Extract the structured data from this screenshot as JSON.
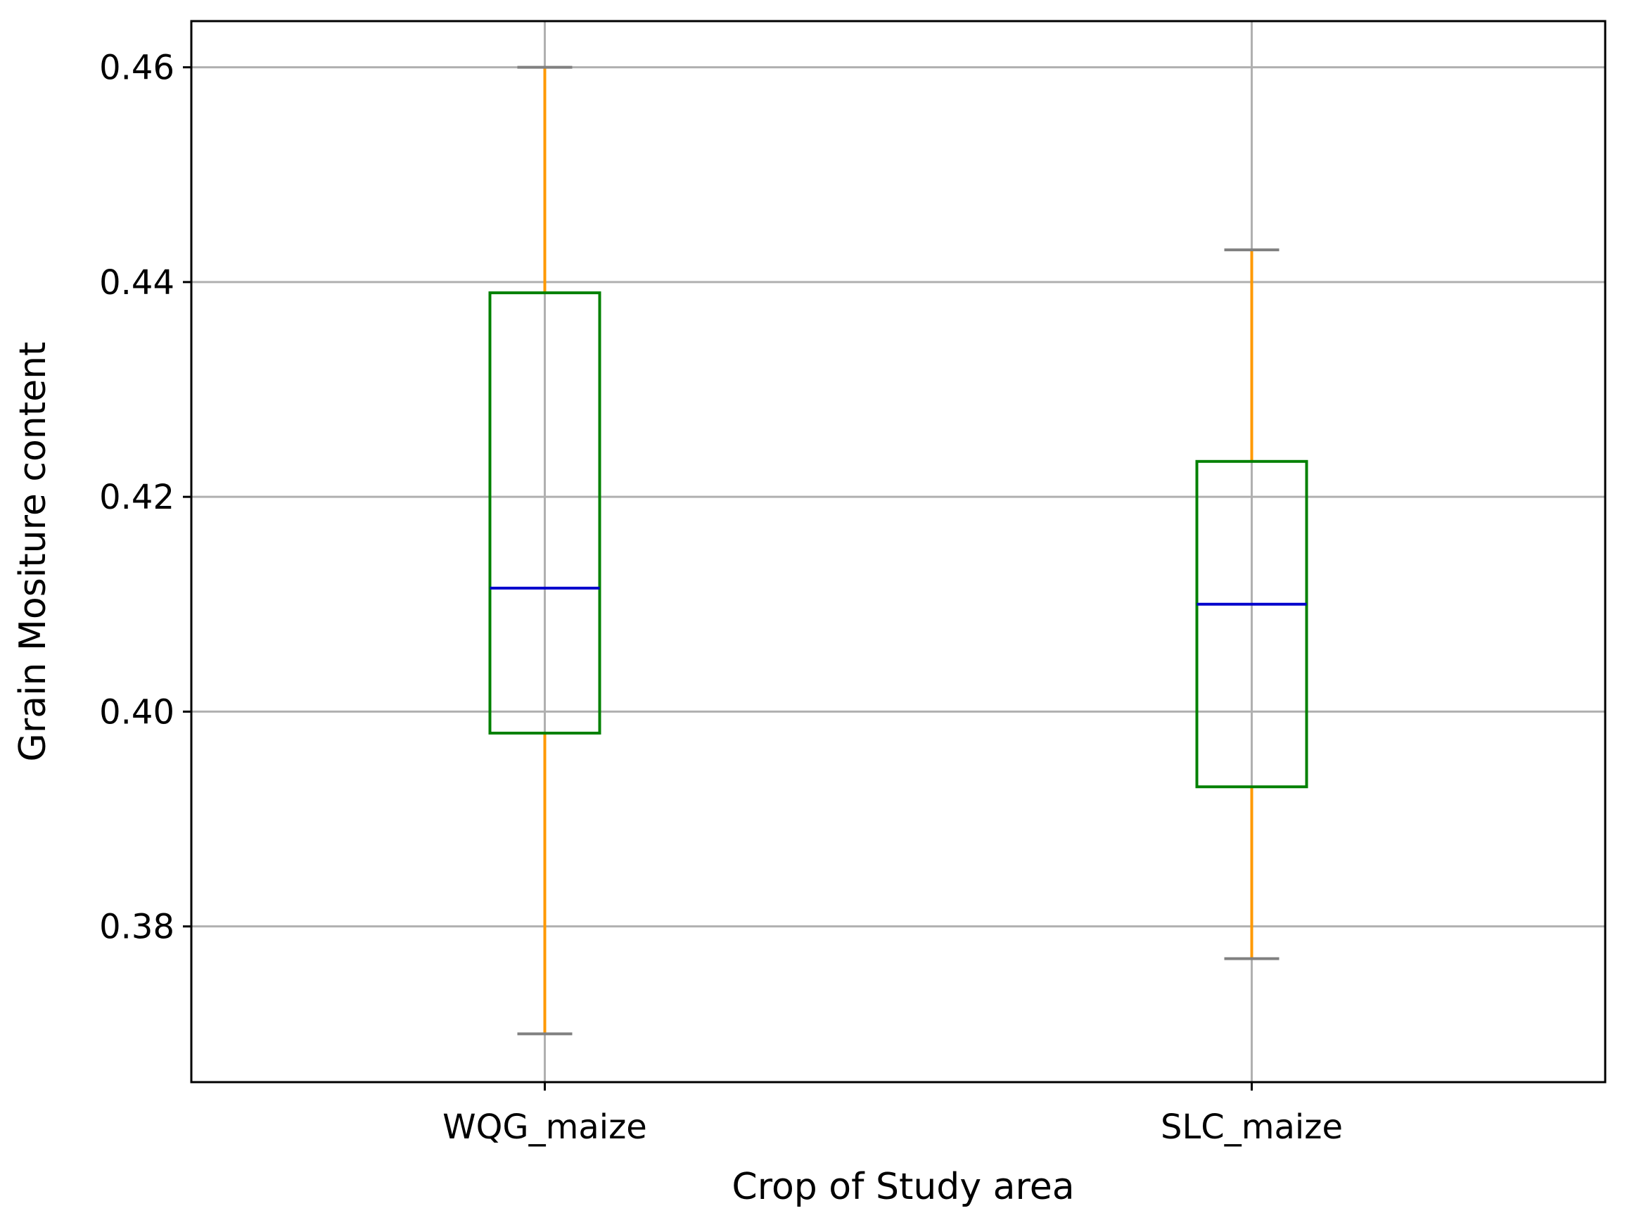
{
  "chart_data": {
    "type": "boxplot",
    "title": "",
    "xlabel": "Crop of Study area",
    "ylabel": "Grain Mositure content",
    "categories": [
      "WQG_maize",
      "SLC_maize"
    ],
    "boxes": [
      {
        "name": "WQG_maize",
        "whisker_low": 0.37,
        "q1": 0.398,
        "median": 0.4115,
        "q3": 0.439,
        "whisker_high": 0.46
      },
      {
        "name": "SLC_maize",
        "whisker_low": 0.377,
        "q1": 0.393,
        "median": 0.41,
        "q3": 0.4233,
        "whisker_high": 0.443
      }
    ],
    "yticks": [
      0.38,
      0.4,
      0.42,
      0.44,
      0.46
    ],
    "ytick_labels": [
      "0.38",
      "0.40",
      "0.42",
      "0.44",
      "0.46"
    ],
    "ylim": [
      0.3655,
      0.4643
    ],
    "grid": true,
    "colors": {
      "box": "#008000",
      "whisker": "#ff9900",
      "median": "#0000cc",
      "cap": "#808080",
      "grid": "#b0b0b0",
      "frame": "#000000"
    }
  }
}
